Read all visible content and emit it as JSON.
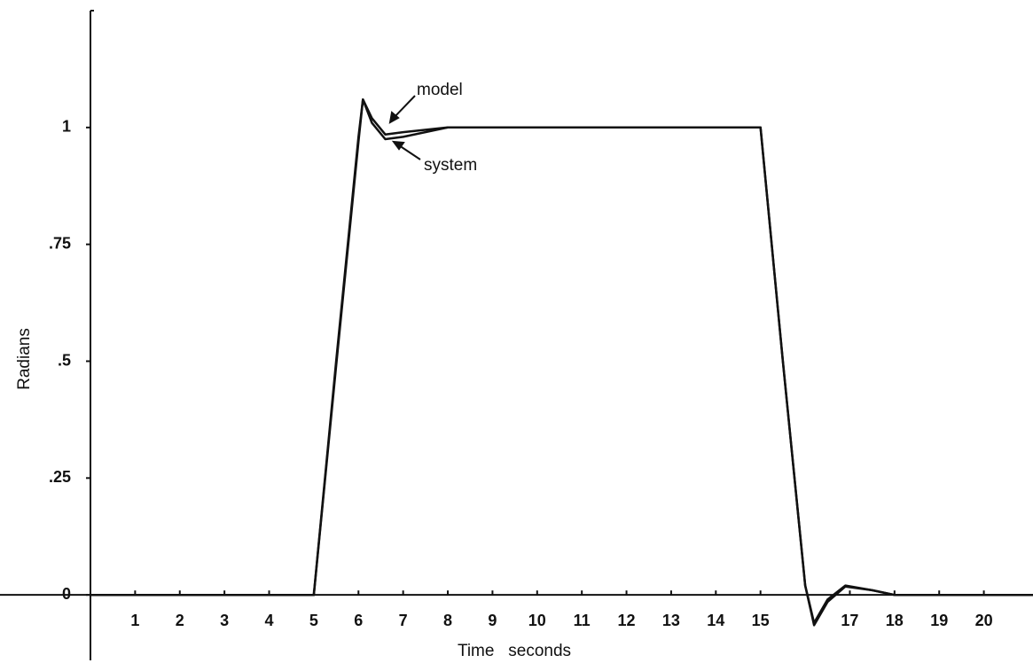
{
  "chart_data": {
    "type": "line",
    "xlabel": "Time   seconds",
    "ylabel": "Radians",
    "x": [
      0,
      5,
      5.5,
      6,
      6.1,
      6.3,
      6.6,
      7,
      8,
      10,
      15,
      15.5,
      16,
      16.2,
      16.5,
      16.9,
      17.5,
      18,
      21.1
    ],
    "series": [
      {
        "name": "model",
        "color": "#111111",
        "values": [
          0,
          0,
          0.5,
          0.98,
          1.06,
          1.02,
          0.985,
          0.99,
          1,
          1,
          1,
          0.5,
          0.02,
          -0.06,
          -0.01,
          0.02,
          0.01,
          0,
          0
        ]
      },
      {
        "name": "system",
        "color": "#111111",
        "values": [
          0,
          0,
          0.49,
          0.97,
          1.06,
          1.01,
          0.975,
          0.98,
          1,
          1,
          1,
          0.5,
          0.02,
          -0.065,
          -0.015,
          0.018,
          0.01,
          0,
          0
        ]
      }
    ],
    "xlim": [
      0,
      21.1
    ],
    "ylim": [
      -0.14,
      1.25
    ],
    "xticks": [
      1,
      2,
      3,
      4,
      5,
      6,
      7,
      8,
      9,
      10,
      11,
      12,
      13,
      14,
      15,
      17,
      18,
      19,
      20
    ],
    "yticks": [
      0,
      {
        "value": 0.25,
        "label": ".25"
      },
      {
        "value": 0.5,
        "label": ".5"
      },
      {
        "value": 0.75,
        "label": ".75"
      },
      1
    ],
    "annotations": [
      "model",
      "system"
    ]
  }
}
